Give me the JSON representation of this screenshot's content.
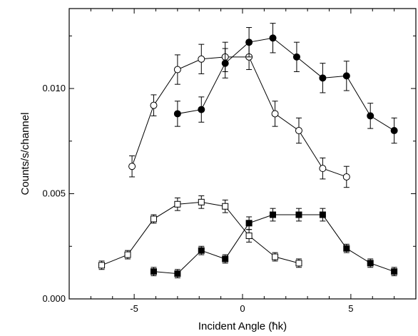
{
  "chart_data": {
    "type": "scatter",
    "title": "",
    "xlabel": "Incident Angle (ħk)",
    "ylabel": "Counts/s/channel",
    "xlim": [
      -8,
      8
    ],
    "ylim": [
      0,
      0.0138
    ],
    "x_ticks": [
      -5,
      0,
      5
    ],
    "x_tick_labels": [
      "-5",
      "0",
      "5"
    ],
    "y_ticks": [
      0.0,
      0.005,
      0.01
    ],
    "y_tick_labels": [
      "0.000",
      "0.005",
      "0.010"
    ],
    "grid": false,
    "legend": "none",
    "series": [
      {
        "marker": "open-circle",
        "x": [
          -5.1,
          -4.1,
          -3.0,
          -1.9,
          -0.8,
          0.3,
          1.5,
          2.6,
          3.7,
          4.8
        ],
        "y": [
          0.0063,
          0.0092,
          0.0109,
          0.0114,
          0.0115,
          0.0115,
          0.0088,
          0.008,
          0.0062,
          0.0058
        ],
        "err": [
          0.0005,
          0.0005,
          0.0007,
          0.0007,
          0.0007,
          0.0006,
          0.0006,
          0.0006,
          0.0005,
          0.0005
        ]
      },
      {
        "marker": "filled-circle",
        "x": [
          -3.0,
          -1.9,
          -0.8,
          0.3,
          1.4,
          2.5,
          3.7,
          4.8,
          5.9,
          7.0
        ],
        "y": [
          0.0088,
          0.009,
          0.0112,
          0.0122,
          0.0124,
          0.0115,
          0.0105,
          0.0106,
          0.0087,
          0.008
        ],
        "err": [
          0.0006,
          0.0006,
          0.0007,
          0.0007,
          0.0007,
          0.0007,
          0.0007,
          0.0007,
          0.0006,
          0.0006
        ]
      },
      {
        "marker": "open-square",
        "x": [
          -6.5,
          -5.3,
          -4.1,
          -3.0,
          -1.9,
          -0.8,
          0.3,
          1.5,
          2.6
        ],
        "y": [
          0.0016,
          0.0021,
          0.0038,
          0.0045,
          0.0046,
          0.0044,
          0.003,
          0.002,
          0.0017
        ],
        "err": [
          0.0002,
          0.0002,
          0.0002,
          0.0003,
          0.0003,
          0.0003,
          0.0003,
          0.0002,
          0.0002
        ]
      },
      {
        "marker": "filled-square",
        "x": [
          -4.1,
          -3.0,
          -1.9,
          -0.8,
          0.3,
          1.4,
          2.6,
          3.7,
          4.8,
          5.9,
          7.0
        ],
        "y": [
          0.0013,
          0.0012,
          0.0023,
          0.0019,
          0.0036,
          0.004,
          0.004,
          0.004,
          0.0024,
          0.0017,
          0.0013
        ],
        "err": [
          0.0002,
          0.0002,
          0.0002,
          0.0002,
          0.0003,
          0.0003,
          0.0003,
          0.0003,
          0.0002,
          0.0002,
          0.0002
        ]
      }
    ]
  }
}
